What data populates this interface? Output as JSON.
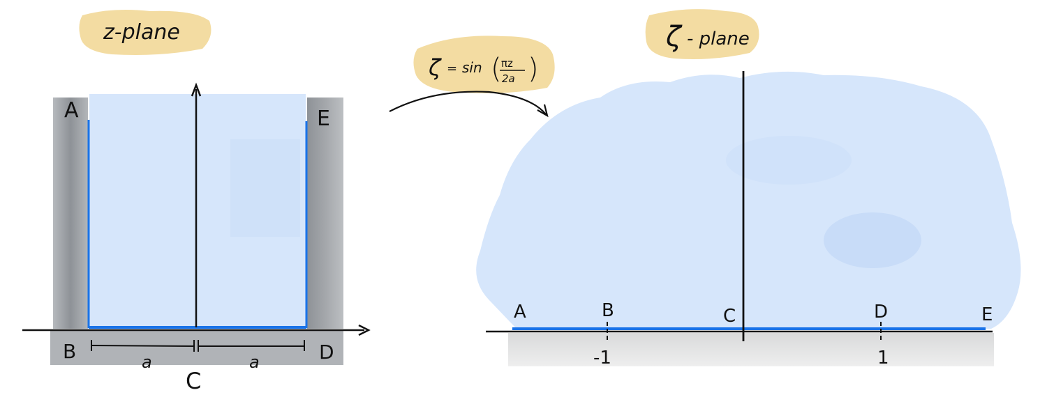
{
  "z_plane": {
    "title": "z-plane",
    "labels": {
      "A": "A",
      "B": "B",
      "C": "C",
      "D": "D",
      "E": "E",
      "a_left": "a",
      "a_right": "a"
    }
  },
  "mapping": {
    "zeta": "ζ",
    "equals": "=",
    "func": "sin",
    "numerator": "πz",
    "denominator": "2a"
  },
  "zeta_plane": {
    "title_symbol": "ζ",
    "title_word": "- plane",
    "labels": {
      "A": "A",
      "B": "B",
      "C": "C",
      "D": "D",
      "E": "E"
    },
    "ticks": {
      "minus_one": "-1",
      "one": "1"
    }
  },
  "colors": {
    "region_fill": "#d6e6fb",
    "boundary": "#1a73e8",
    "wall": "#9a9ea4",
    "lower_band": "#e6e7e8",
    "highlight": "#f2d898",
    "ink": "#111111"
  }
}
